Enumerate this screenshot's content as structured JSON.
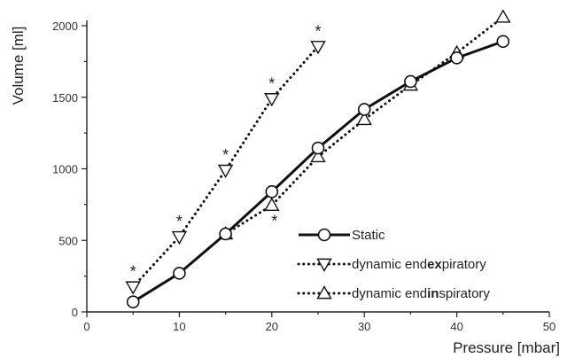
{
  "chart_data": {
    "type": "line",
    "xlabel": "Pressure [mbar]",
    "ylabel": "Volume [ml]",
    "xlim": [
      0,
      50
    ],
    "ylim": [
      0,
      2000
    ],
    "x_ticks": [
      "0",
      "10",
      "20",
      "30",
      "40",
      "50"
    ],
    "y_ticks": [
      "0",
      "500",
      "1000",
      "1500",
      "2000"
    ],
    "grid": false,
    "legend_position": "bottom-right",
    "series": [
      {
        "name": "Static",
        "legend_parts": [
          {
            "text": "Static",
            "bold": false
          }
        ],
        "line_style": "solid",
        "marker": "circle",
        "x": [
          5,
          10,
          15,
          20,
          25,
          30,
          35,
          40,
          45
        ],
        "y": [
          70,
          270,
          545,
          840,
          1145,
          1415,
          1610,
          1775,
          1890
        ]
      },
      {
        "name": "dynamic endexpiratory",
        "legend_parts": [
          {
            "text": "dynamic end",
            "bold": false
          },
          {
            "text": "ex",
            "bold": true
          },
          {
            "text": "piratory",
            "bold": false
          }
        ],
        "line_style": "dotted",
        "marker": "triangle-down",
        "x": [
          5,
          10,
          15,
          20,
          25
        ],
        "y": [
          175,
          525,
          990,
          1490,
          1855
        ]
      },
      {
        "name": "dynamic endinspiratory",
        "legend_parts": [
          {
            "text": "dynamic end",
            "bold": false
          },
          {
            "text": "in",
            "bold": true
          },
          {
            "text": "spiratory",
            "bold": false
          }
        ],
        "line_style": "dotted",
        "marker": "triangle-up",
        "x": [
          15,
          20,
          25,
          30,
          35,
          40,
          45
        ],
        "y": [
          545,
          745,
          1085,
          1345,
          1585,
          1810,
          2060
        ]
      }
    ],
    "annotations": [
      {
        "text": "*",
        "x": 5,
        "y": 175,
        "placement": "above"
      },
      {
        "text": "*",
        "x": 10,
        "y": 525,
        "placement": "above"
      },
      {
        "text": "*",
        "x": 15,
        "y": 990,
        "placement": "above"
      },
      {
        "text": "*",
        "x": 20,
        "y": 1490,
        "placement": "above"
      },
      {
        "text": "*",
        "x": 25,
        "y": 1855,
        "placement": "above"
      },
      {
        "text": "*",
        "x": 20,
        "y": 745,
        "placement": "below"
      }
    ]
  }
}
